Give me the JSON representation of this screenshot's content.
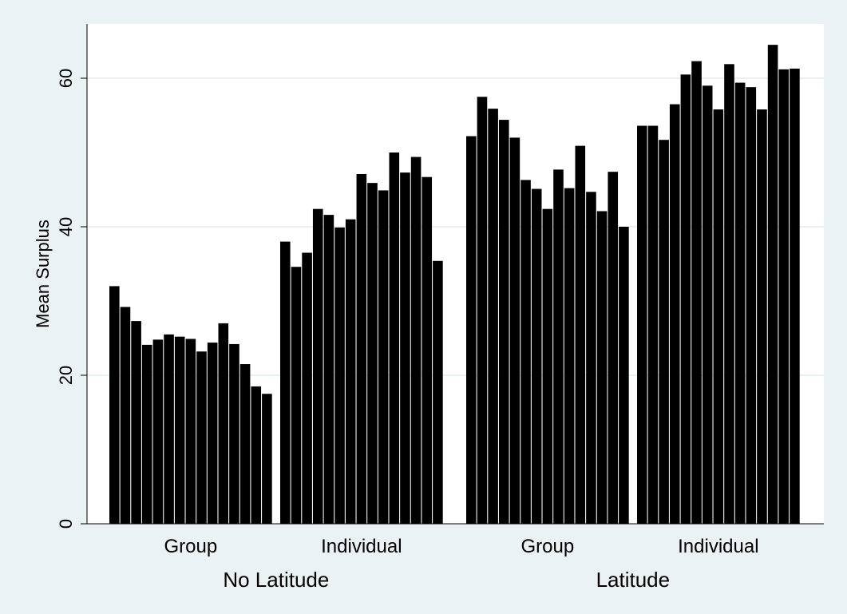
{
  "chart_data": {
    "type": "bar",
    "title": "",
    "ylabel": "Mean Surplus",
    "ylim": [
      0,
      67.5
    ],
    "yticks": [
      0,
      20,
      40,
      60
    ],
    "grid": true,
    "bar_color": "#000000",
    "gridline_color": "#e1ebee",
    "background_color": "#eaf2f3",
    "plot_background_color": "#ffffff",
    "groups": [
      {
        "label": "No Latitude",
        "subgroups": [
          {
            "label": "Group",
            "values": [
              32.0,
              29.2,
              27.3,
              24.1,
              24.8,
              25.5,
              25.2,
              24.9,
              23.2,
              24.4,
              27.0,
              24.2,
              21.5,
              18.5,
              17.5
            ]
          },
          {
            "label": "Individual",
            "values": [
              38.0,
              34.6,
              36.5,
              42.4,
              41.6,
              39.9,
              41.0,
              47.1,
              45.9,
              44.9,
              50.0,
              47.3,
              49.4,
              46.7,
              35.4
            ]
          }
        ]
      },
      {
        "label": "Latitude",
        "subgroups": [
          {
            "label": "Group",
            "values": [
              52.2,
              57.5,
              55.9,
              54.4,
              52.0,
              46.3,
              45.1,
              42.4,
              47.7,
              45.2,
              50.9,
              44.7,
              42.1,
              47.4,
              40.0
            ]
          },
          {
            "label": "Individual",
            "values": [
              53.6,
              53.6,
              51.7,
              56.5,
              60.5,
              62.3,
              59.0,
              55.8,
              61.9,
              59.4,
              58.8,
              55.8,
              64.5,
              61.2,
              61.3
            ]
          }
        ]
      }
    ]
  }
}
